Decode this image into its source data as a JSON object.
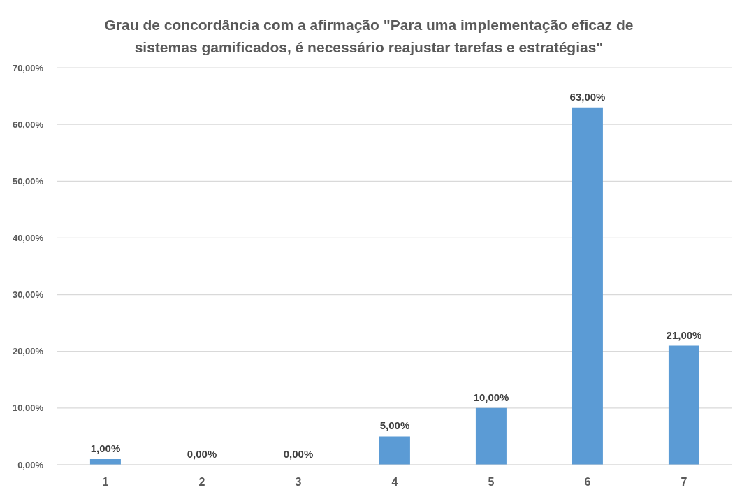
{
  "chart_data": {
    "type": "bar",
    "title": "Grau de concordância com a afirmação \"Para uma implementação eficaz de sistemas gamificados, é necessário reajustar tarefas e estratégias\"",
    "categories": [
      "1",
      "2",
      "3",
      "4",
      "5",
      "6",
      "7"
    ],
    "values": [
      1,
      0,
      0,
      5,
      10,
      63,
      21
    ],
    "value_labels": [
      "1,00%",
      "0,00%",
      "0,00%",
      "5,00%",
      "10,00%",
      "63,00%",
      "21,00%"
    ],
    "color": "#5b9bd5",
    "ylim": [
      0,
      70
    ],
    "yticks": [
      {
        "value": 0,
        "label": "0,00%"
      },
      {
        "value": 10,
        "label": "10,00%"
      },
      {
        "value": 20,
        "label": "20,00%"
      },
      {
        "value": 30,
        "label": "30,00%"
      },
      {
        "value": 40,
        "label": "40,00%"
      },
      {
        "value": 50,
        "label": "50,00%"
      },
      {
        "value": 60,
        "label": "60,00%"
      },
      {
        "value": 70,
        "label": "70,00%"
      }
    ],
    "grid": "y"
  }
}
